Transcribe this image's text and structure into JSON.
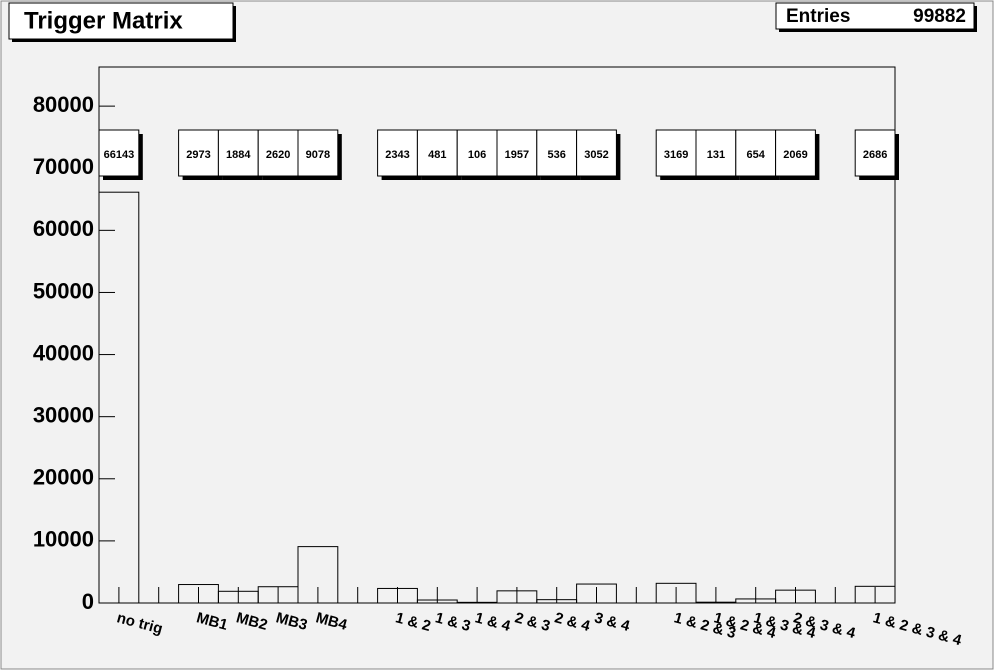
{
  "chart_data": {
    "type": "histogram",
    "title": "Trigger Matrix",
    "entries_label": "Entries",
    "entries": 99882,
    "categories": [
      "no trig",
      null,
      "MB1",
      "MB2",
      "MB3",
      "MB4",
      null,
      "1 & 2",
      "1 & 3",
      "1 & 4",
      "2 & 3",
      "2 & 4",
      "3 & 4",
      null,
      "1 & 2 & 3",
      "1 & 2 & 4",
      "1 & 3 & 4",
      "2 & 3 & 4",
      null,
      "1 & 2 & 3 & 4"
    ],
    "values": [
      66143,
      null,
      2973,
      1884,
      2620,
      9078,
      null,
      2343,
      481,
      106,
      1957,
      536,
      3052,
      null,
      3169,
      131,
      654,
      2069,
      null,
      2686
    ],
    "color": "#000000",
    "ylim": [
      0,
      86300
    ],
    "yticks": [
      0,
      10000,
      20000,
      30000,
      40000,
      50000,
      60000,
      70000,
      80000
    ]
  }
}
